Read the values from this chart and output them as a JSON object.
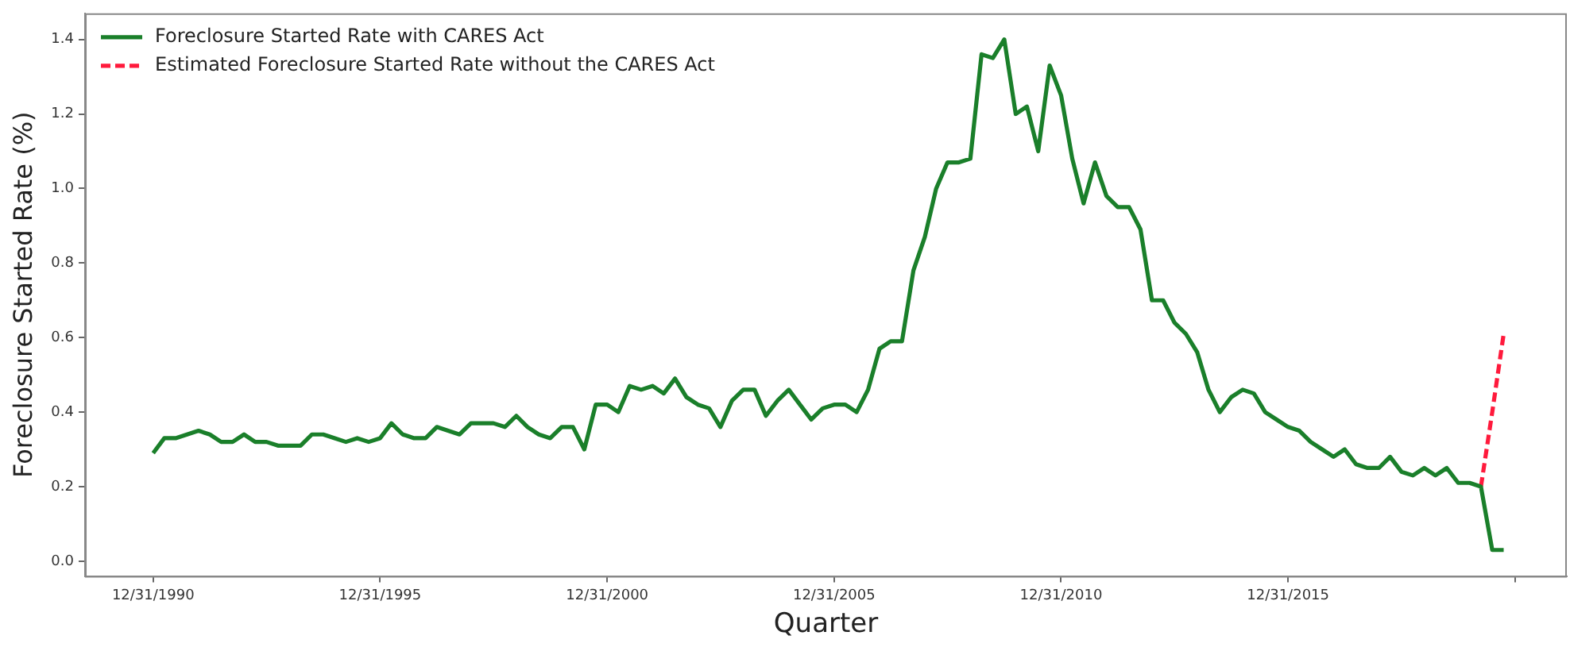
{
  "chart_data": {
    "type": "line",
    "xlabel": "Quarter",
    "ylabel": "Foreclosure Started Rate (%)",
    "x": [
      "1990-12-31",
      "1991-03-31",
      "1991-06-30",
      "1991-09-30",
      "1991-12-31",
      "1992-03-31",
      "1992-06-30",
      "1992-09-30",
      "1992-12-31",
      "1993-03-31",
      "1993-06-30",
      "1993-09-30",
      "1993-12-31",
      "1994-03-31",
      "1994-06-30",
      "1994-09-30",
      "1994-12-31",
      "1995-03-31",
      "1995-06-30",
      "1995-09-30",
      "1995-12-31",
      "1996-03-31",
      "1996-06-30",
      "1996-09-30",
      "1996-12-31",
      "1997-03-31",
      "1997-06-30",
      "1997-09-30",
      "1997-12-31",
      "1998-03-31",
      "1998-06-30",
      "1998-09-30",
      "1998-12-31",
      "1999-03-31",
      "1999-06-30",
      "1999-09-30",
      "1999-12-31",
      "2000-03-31",
      "2000-06-30",
      "2000-09-30",
      "2000-12-31",
      "2001-03-31",
      "2001-06-30",
      "2001-09-30",
      "2001-12-31",
      "2002-03-31",
      "2002-06-30",
      "2002-09-30",
      "2002-12-31",
      "2003-03-31",
      "2003-06-30",
      "2003-09-30",
      "2003-12-31",
      "2004-03-31",
      "2004-06-30",
      "2004-09-30",
      "2004-12-31",
      "2005-03-31",
      "2005-06-30",
      "2005-09-30",
      "2005-12-31",
      "2006-03-31",
      "2006-06-30",
      "2006-09-30",
      "2006-12-31",
      "2007-03-31",
      "2007-06-30",
      "2007-09-30",
      "2007-12-31",
      "2008-03-31",
      "2008-06-30",
      "2008-09-30",
      "2008-12-31",
      "2009-03-31",
      "2009-06-30",
      "2009-09-30",
      "2009-12-31",
      "2010-03-31",
      "2010-06-30",
      "2010-09-30",
      "2010-12-31",
      "2011-03-31",
      "2011-06-30",
      "2011-09-30",
      "2011-12-31",
      "2012-03-31",
      "2012-06-30",
      "2012-09-30",
      "2012-12-31",
      "2013-03-31",
      "2013-06-30",
      "2013-09-30",
      "2013-12-31",
      "2014-03-31",
      "2014-06-30",
      "2014-09-30",
      "2014-12-31",
      "2015-03-31",
      "2015-06-30",
      "2015-09-30",
      "2015-12-31",
      "2016-03-31",
      "2016-06-30",
      "2016-09-30",
      "2016-12-31",
      "2017-03-31",
      "2017-06-30",
      "2017-09-30",
      "2017-12-31",
      "2018-03-31",
      "2018-06-30",
      "2018-09-30",
      "2018-12-31",
      "2019-03-31",
      "2019-06-30",
      "2019-09-30",
      "2019-12-31",
      "2020-03-31",
      "2020-06-30",
      "2020-09-30"
    ],
    "series": [
      {
        "name": "Foreclosure Started Rate with CARES Act",
        "color": "#1a7f2a",
        "line_style": "solid",
        "values": [
          0.29,
          0.33,
          0.33,
          0.34,
          0.35,
          0.34,
          0.32,
          0.32,
          0.34,
          0.32,
          0.32,
          0.31,
          0.31,
          0.31,
          0.34,
          0.34,
          0.33,
          0.32,
          0.33,
          0.32,
          0.33,
          0.37,
          0.34,
          0.33,
          0.33,
          0.36,
          0.35,
          0.34,
          0.37,
          0.37,
          0.37,
          0.36,
          0.39,
          0.36,
          0.34,
          0.33,
          0.36,
          0.36,
          0.3,
          0.42,
          0.42,
          0.4,
          0.47,
          0.46,
          0.47,
          0.45,
          0.49,
          0.44,
          0.42,
          0.41,
          0.36,
          0.43,
          0.46,
          0.46,
          0.39,
          0.43,
          0.46,
          0.42,
          0.38,
          0.41,
          0.42,
          0.42,
          0.4,
          0.46,
          0.57,
          0.59,
          0.59,
          0.78,
          0.87,
          1.0,
          1.07,
          1.07,
          1.08,
          1.36,
          1.35,
          1.4,
          1.2,
          1.22,
          1.1,
          1.33,
          1.25,
          1.08,
          0.96,
          1.07,
          0.98,
          0.95,
          0.95,
          0.89,
          0.7,
          0.7,
          0.64,
          0.61,
          0.56,
          0.46,
          0.4,
          0.44,
          0.46,
          0.45,
          0.4,
          0.38,
          0.36,
          0.35,
          0.32,
          0.3,
          0.28,
          0.3,
          0.26,
          0.25,
          0.25,
          0.28,
          0.24,
          0.23,
          0.25,
          0.23,
          0.25,
          0.21,
          0.21,
          0.2,
          0.03,
          0.03
        ]
      },
      {
        "name": "Estimated Foreclosure Started Rate without the CARES Act",
        "color": "#ff1a3c",
        "line_style": "dashed",
        "x": [
          "2020-03-31",
          "2020-06-30",
          "2020-09-30"
        ],
        "values": [
          0.2,
          0.4,
          0.61
        ]
      }
    ],
    "xlim": [
      "1989-07-01",
      "2022-02-20"
    ],
    "xticks": [
      {
        "value": "1990-12-31",
        "label": "12/31/1990"
      },
      {
        "value": "1995-12-31",
        "label": "12/31/1995"
      },
      {
        "value": "2000-12-31",
        "label": "12/31/2000"
      },
      {
        "value": "2005-12-31",
        "label": "12/31/2005"
      },
      {
        "value": "2010-12-31",
        "label": "12/31/2010"
      },
      {
        "value": "2015-12-31",
        "label": "12/31/2015"
      },
      {
        "value": "2020-12-31",
        "label": null
      }
    ],
    "ylim": [
      -0.04,
      1.47
    ],
    "yticks": [
      {
        "value": 0,
        "label": "0.0"
      },
      0.2,
      0.4,
      0.6,
      0.8,
      {
        "value": 1,
        "label": "1.0"
      },
      1.2,
      1.4
    ],
    "grid": false,
    "legend": "top left"
  }
}
